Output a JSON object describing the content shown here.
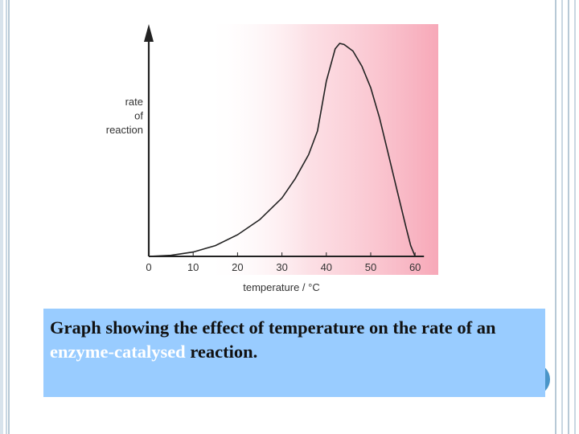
{
  "caption": {
    "part1": "Graph showing the effect of temperature on the rate of an ",
    "highlight": "enzyme-catalysed",
    "part2": " reaction."
  },
  "colors": {
    "caption_background": "#99ccff",
    "caption_highlight": "#ffffff",
    "background_shading": "#f7a8b8",
    "curve": "#222222"
  },
  "chart_data": {
    "type": "line",
    "title": "",
    "xlabel": "temperature / °C",
    "ylabel_lines": [
      "rate",
      "of",
      "reaction"
    ],
    "xlim": [
      0,
      62
    ],
    "ylim": [
      0,
      1
    ],
    "x_ticks": [
      0,
      10,
      20,
      30,
      40,
      50,
      60
    ],
    "y_ticks": [],
    "grid": false,
    "legend": "none",
    "series": [
      {
        "x": [
          0,
          5,
          10,
          15,
          20,
          25,
          30,
          33,
          36,
          38,
          40,
          42,
          43,
          44,
          46,
          48,
          50,
          52,
          54,
          56,
          58,
          59,
          60
        ],
        "y": [
          0,
          0.005,
          0.02,
          0.05,
          0.1,
          0.17,
          0.27,
          0.36,
          0.47,
          0.58,
          0.81,
          0.96,
          0.985,
          0.98,
          0.95,
          0.88,
          0.78,
          0.64,
          0.47,
          0.3,
          0.13,
          0.05,
          0
        ]
      }
    ]
  }
}
